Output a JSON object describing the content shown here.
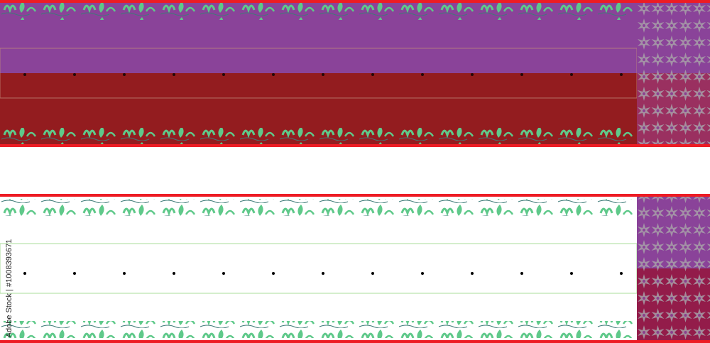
{
  "watermark": {
    "text": "Adobe Stock | #1008393671"
  },
  "colors": {
    "purple": "#8a4399",
    "maroon": "#931c1f",
    "red_border": "#ed1c24",
    "leaf_green": "#5fc98a",
    "light_green": "#a8dc9a",
    "star_grey": "#a7a0a8",
    "white": "#ffffff"
  }
}
